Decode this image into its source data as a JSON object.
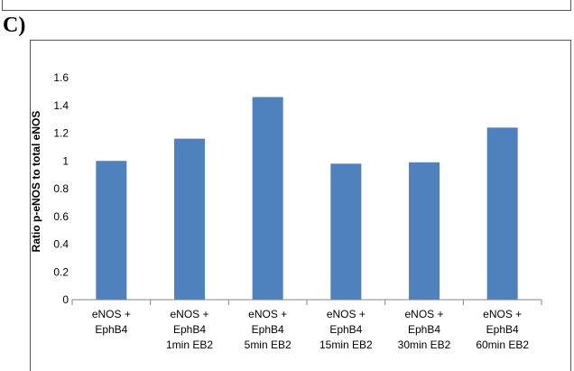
{
  "panel_label": "C)",
  "chart_data": {
    "type": "bar",
    "title": "",
    "xlabel": "",
    "ylabel": "Ratio p-eNOS to total eNOS",
    "ylim": [
      0,
      1.6
    ],
    "yticks": [
      "0",
      "0.2",
      "0.4",
      "0.6",
      "0.8",
      "1",
      "1.2",
      "1.4",
      "1.6"
    ],
    "grid": false,
    "legend": "none",
    "bar_color": "#4f81bd",
    "categories": [
      [
        "eNOS +",
        "EphB4"
      ],
      [
        "eNOS +",
        "EphB4",
        "1min EB2"
      ],
      [
        "eNOS +",
        "EphB4",
        "5min EB2"
      ],
      [
        "eNOS +",
        "EphB4",
        "15min EB2"
      ],
      [
        "eNOS +",
        "EphB4",
        "30min EB2"
      ],
      [
        "eNOS +",
        "EphB4",
        "60min EB2"
      ]
    ],
    "values": [
      1.0,
      1.16,
      1.46,
      0.98,
      0.99,
      1.24
    ]
  }
}
